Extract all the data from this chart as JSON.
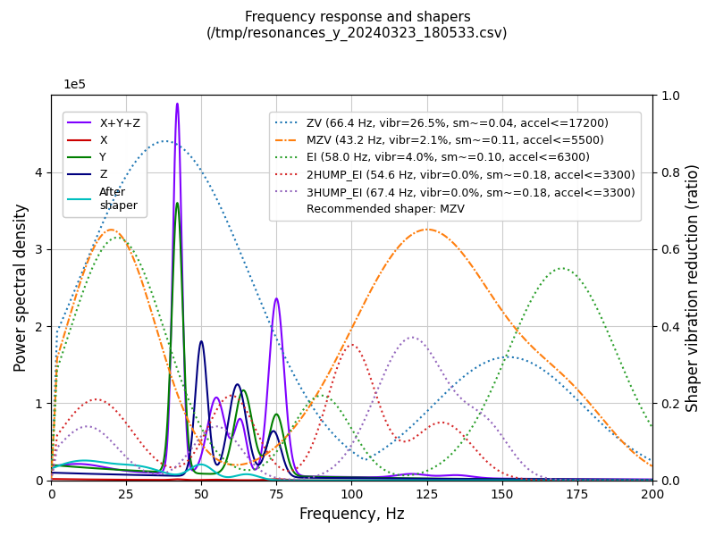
{
  "title_line1": "Frequency response and shapers",
  "title_line2": "(/tmp/resonances_y_20240323_180533.csv)",
  "xlabel": "Frequency, Hz",
  "ylabel_left": "Power spectral density",
  "ylabel_right": "Shaper vibration reduction (ratio)",
  "xlim": [
    0,
    200
  ],
  "ylim_left": [
    0,
    500000
  ],
  "ylim_right": [
    0,
    1.0
  ],
  "left_yticks": [
    0,
    100000,
    200000,
    300000,
    400000
  ],
  "left_ytick_labels": [
    "0",
    "1",
    "2",
    "3",
    "4"
  ],
  "left_exp": "1e5",
  "right_yticks": [
    0.0,
    0.2,
    0.4,
    0.6,
    0.8,
    1.0
  ],
  "xticks": [
    0,
    25,
    50,
    75,
    100,
    125,
    150,
    175,
    200
  ],
  "psd_lines": [
    {
      "label": "X+Y+Z",
      "color": "#7f00ff",
      "lw": 1.5,
      "ls": "solid"
    },
    {
      "label": "X",
      "color": "#cc0000",
      "lw": 1.5,
      "ls": "solid"
    },
    {
      "label": "Y",
      "color": "#007f00",
      "lw": 1.5,
      "ls": "solid"
    },
    {
      "label": "Z",
      "color": "#00007f",
      "lw": 1.5,
      "ls": "solid"
    },
    {
      "label": "After shaper",
      "color": "#00bfbf",
      "lw": 1.5,
      "ls": "solid"
    }
  ],
  "shaper_lines": [
    {
      "label": "ZV (66.4 Hz, vibr=26.5%, sm~=0.04, accel<=17200)",
      "color": "#1f77b4",
      "lw": 1.5,
      "ls": "dotted",
      "dash": null
    },
    {
      "label": "MZV (43.2 Hz, vibr=2.1%, sm~=0.11, accel<=5500)",
      "color": "#ff7f0e",
      "lw": 1.5,
      "ls": "dashdot",
      "dash": null
    },
    {
      "label": "EI (58.0 Hz, vibr=4.0%, sm~=0.10, accel<=6300)",
      "color": "#2ca02c",
      "lw": 1.5,
      "ls": "dotted",
      "dash": null
    },
    {
      "label": "2HUMP_EI (54.6 Hz, vibr=0.0%, sm~=0.18, accel<=3300)",
      "color": "#d62728",
      "lw": 1.5,
      "ls": "dotted",
      "dash": null
    },
    {
      "label": "3HUMP_EI (67.4 Hz, vibr=0.0%, sm~=0.18, accel<=3300)",
      "color": "#9467bd",
      "lw": 1.5,
      "ls": "dotted",
      "dash": null
    }
  ],
  "recommended": "Recommended shaper: MZV",
  "bg_color": "#ffffff",
  "grid_color": "#cccccc"
}
